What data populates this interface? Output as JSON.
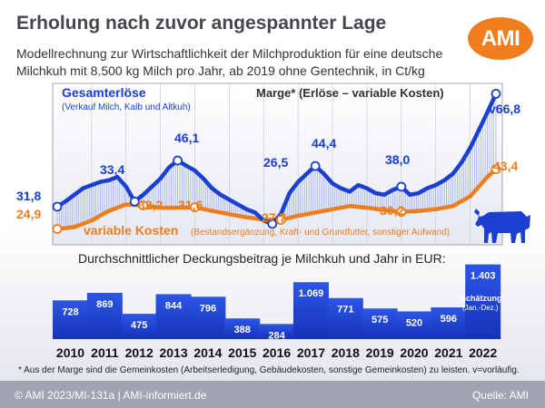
{
  "header": {
    "title": "Erholung nach zuvor angespannter Lage",
    "subtitle": "Modellrechnung zur Wirtschaftlichkeit der Milchproduktion für eine deutsche Milchkuh mit 8.500 kg Milch pro Jahr, ab 2019 ohne Gentechnik, in Ct/kg",
    "logo_text": "AMI"
  },
  "colors": {
    "revenue": "#1a3fd1",
    "costs": "#ee7d1c",
    "bars": "#1a3fd1",
    "logo": "#f07e1e"
  },
  "icons": {
    "cow": "cow-icon"
  },
  "chart_data": [
    {
      "type": "line",
      "legend": {
        "revenue_title": "Gesamterlöse",
        "revenue_sub": "(Verkauf Milch, Kalb und Altkuh)",
        "margin_label": "Marge* (Erlöse – variable Kosten)",
        "costs_title": "variable Kosten",
        "costs_sub": "(Bestandsergänzung, Kraft- und Grundfutter, sonstiger Aufwand)"
      },
      "ylim": [
        20,
        70
      ],
      "series": [
        {
          "name": "Gesamterlöse",
          "x": [
            2010.0,
            2010.25,
            2010.5,
            2010.75,
            2011.0,
            2011.25,
            2011.5,
            2011.75,
            2012.0,
            2012.25,
            2012.5,
            2012.75,
            2013.0,
            2013.25,
            2013.5,
            2013.75,
            2014.0,
            2014.25,
            2014.5,
            2014.75,
            2015.0,
            2015.25,
            2015.5,
            2015.75,
            2016.0,
            2016.25,
            2016.5,
            2016.75,
            2017.0,
            2017.25,
            2017.5,
            2017.75,
            2018.0,
            2018.25,
            2018.5,
            2018.75,
            2019.0,
            2019.25,
            2019.5,
            2019.75,
            2020.0,
            2020.25,
            2020.5,
            2020.75,
            2021.0,
            2021.25,
            2021.5,
            2021.75,
            2022.0,
            2022.25,
            2022.5,
            2022.75
          ],
          "values": [
            31.8,
            33.5,
            35.5,
            37.5,
            38.5,
            39.5,
            40.0,
            41.0,
            38.0,
            33.4,
            35.5,
            38.0,
            40.5,
            44.0,
            46.1,
            44.5,
            43.0,
            40.5,
            37.5,
            35.5,
            34.0,
            32.5,
            31.0,
            30.0,
            27.5,
            26.5,
            29.5,
            36.0,
            39.5,
            42.0,
            44.4,
            42.0,
            39.0,
            37.5,
            36.5,
            38.5,
            37.5,
            36.0,
            35.5,
            37.0,
            38.0,
            35.5,
            36.0,
            37.5,
            38.5,
            40.0,
            42.0,
            45.5,
            50.0,
            55.5,
            61.0,
            66.8
          ],
          "labels": [
            "31,8",
            "33,4",
            "46,1",
            "26,5",
            "44,4",
            "38,0",
            "v66,8"
          ]
        },
        {
          "name": "variable Kosten",
          "x": [
            2010.0,
            2010.5,
            2011.0,
            2011.5,
            2012.0,
            2012.5,
            2013.0,
            2013.5,
            2014.0,
            2014.5,
            2015.0,
            2015.5,
            2016.0,
            2016.5,
            2017.0,
            2017.5,
            2018.0,
            2018.5,
            2019.0,
            2019.5,
            2020.0,
            2020.5,
            2021.0,
            2021.5,
            2022.0,
            2022.25,
            2022.5,
            2022.75
          ],
          "values": [
            24.9,
            25.5,
            27.5,
            30.5,
            32.5,
            32.2,
            31.5,
            31.5,
            31.6,
            30.5,
            29.5,
            28.5,
            27.8,
            27.7,
            29.0,
            30.0,
            31.0,
            32.0,
            31.5,
            30.8,
            30.2,
            30.5,
            31.0,
            32.0,
            35.0,
            38.0,
            41.0,
            43.4
          ],
          "labels": [
            "24,9",
            "32,2",
            "31,6",
            "27,7",
            "30,2",
            "43,4"
          ]
        }
      ]
    },
    {
      "type": "bar",
      "title": "Durchschnittlicher Deckungsbeitrag je Milchkuh und Jahr in EUR:",
      "categories": [
        "2010",
        "2011",
        "2012",
        "2013",
        "2014",
        "2015",
        "2016",
        "2017",
        "2018",
        "2019",
        "2020",
        "2021",
        "2022"
      ],
      "values": [
        728,
        869,
        475,
        844,
        796,
        388,
        284,
        1069,
        771,
        575,
        520,
        596,
        1403
      ],
      "value_labels": [
        "728",
        "869",
        "475",
        "844",
        "796",
        "388",
        "284",
        "1.069",
        "771",
        "575",
        "520",
        "596",
        "1.403"
      ],
      "annotation": "Schätzung",
      "annotation_sub": "(Jan.-Dez.)"
    }
  ],
  "footnote": "* Aus der Marge sind die Gemeinkosten (Arbeitserledigung, Gebäudekosten, sonstige Gemeinkosten) zu leisten. v=vorläufig.",
  "footer": {
    "left": "© AMI 2023/MI-131a | AMI-informiert.de",
    "right": "Quelle: AMI"
  }
}
